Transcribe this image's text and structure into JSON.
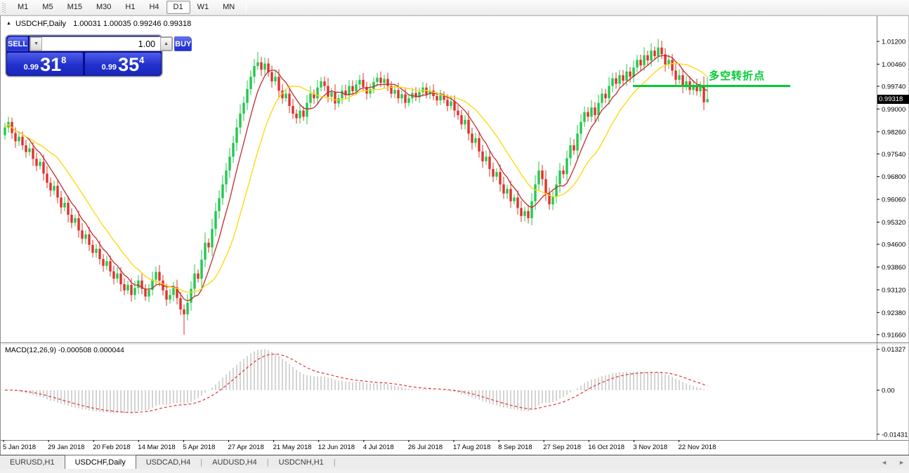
{
  "toolbar": {
    "timeframes": [
      "M1",
      "M5",
      "M15",
      "M30",
      "H1",
      "H4",
      "D1",
      "W1",
      "MN"
    ],
    "active_timeframe": "D1"
  },
  "chart": {
    "title": {
      "arrow": "▲",
      "symbol": "USDCHF,Daily",
      "quotes": "1.00031 1.00035 0.99246 0.99318"
    },
    "trade_panel": {
      "sell_label": "SELL",
      "buy_label": "BUY",
      "volume": "1.00",
      "down_arrow_icon": "▼",
      "up_arrow_icon": "▲",
      "sell_price": {
        "prefix": "0.99",
        "big": "31",
        "sup": "8"
      },
      "buy_price": {
        "prefix": "0.99",
        "big": "35",
        "sup": "4"
      }
    },
    "annotation": {
      "text": "多空转折点",
      "color": "#00cc33"
    },
    "current_price": "0.99318",
    "y_ticks": [
      "1.01200",
      "1.00460",
      "0.99740",
      "0.99000",
      "0.98260",
      "0.97540",
      "0.96800",
      "0.96060",
      "0.95320",
      "0.94600",
      "0.93860",
      "0.93120",
      "0.92380",
      "0.91660"
    ],
    "x_ticks": [
      "5 Jan 2018",
      "29 Jan 2018",
      "20 Feb 2018",
      "14 Mar 2018",
      "5 Apr 2018",
      "27 Apr 2018",
      "21 May 2018",
      "12 Jun 2018",
      "4 Jul 2018",
      "26 Jul 2018",
      "17 Aug 2018",
      "8 Sep 2018",
      "27 Sep 2018",
      "16 Oct 2018",
      "3 Nov 2018",
      "22 Nov 2018"
    ]
  },
  "tabs": {
    "items": [
      "EURUSD,H1",
      "USDCHF,Daily",
      "USDCAD,H4",
      "AUDUSD,H4",
      "USDCNH,H1"
    ],
    "active_index": 1,
    "scroll_left_icon": "◄",
    "scroll_right_icon": "►"
  },
  "chart_data": {
    "type": "candlestick",
    "symbol": "USDCHF",
    "timeframe": "Daily",
    "price_axis": {
      "min": 0.9166,
      "max": 1.012,
      "tick_step": 0.0074
    },
    "colors": {
      "up": "#22c94e",
      "down": "#e0312b",
      "ma_fast": "#bf2b2b",
      "ma_slow": "#ffd700",
      "histogram": "#b8b8b8",
      "signal": "#e23434",
      "trendline": "#00cc33",
      "axis": "#808080"
    },
    "candles": {
      "first_open": 0.9815,
      "closes": [
        0.984,
        0.9858,
        0.9822,
        0.9795,
        0.981,
        0.9782,
        0.976,
        0.9772,
        0.9738,
        0.9715,
        0.9728,
        0.969,
        0.966,
        0.9635,
        0.965,
        0.9612,
        0.958,
        0.9595,
        0.9556,
        0.953,
        0.9545,
        0.9505,
        0.9478,
        0.9492,
        0.9458,
        0.9432,
        0.9445,
        0.9412,
        0.939,
        0.9405,
        0.9372,
        0.9348,
        0.9365,
        0.933,
        0.931,
        0.9328,
        0.9295,
        0.9318,
        0.9342,
        0.9315,
        0.929,
        0.9312,
        0.9345,
        0.937,
        0.9342,
        0.931,
        0.928,
        0.9295,
        0.932,
        0.9285,
        0.9248,
        0.9232,
        0.927,
        0.9315,
        0.9365,
        0.9348,
        0.941,
        0.9465,
        0.945,
        0.951,
        0.9568,
        0.961,
        0.9655,
        0.97,
        0.9745,
        0.979,
        0.984,
        0.9885,
        0.992,
        0.9965,
        1.0005,
        1.004,
        1.0052,
        1.0028,
        1.0048,
        1.002,
        0.999,
        1.0005,
        0.996,
        0.9935,
        0.995,
        0.991,
        0.9885,
        0.987,
        0.9895,
        0.9875,
        0.992,
        0.995,
        0.9935,
        0.997,
        0.999,
        0.9975,
        0.994,
        0.9955,
        0.9918,
        0.9935,
        0.996,
        0.9945,
        0.9975,
        0.9958,
        0.998,
        0.9995,
        0.9972,
        0.995,
        0.9965,
        0.9988,
        1.0002,
        0.9985,
        0.9998,
        0.9975,
        0.995,
        0.9962,
        0.9935,
        0.9948,
        0.992,
        0.9935,
        0.9952,
        0.9938,
        0.9955,
        0.997,
        0.9948,
        0.996,
        0.9942,
        0.9928,
        0.9945,
        0.993,
        0.991,
        0.9925,
        0.9895,
        0.988,
        0.985,
        0.9865,
        0.982,
        0.979,
        0.9805,
        0.9762,
        0.973,
        0.9745,
        0.9705,
        0.968,
        0.9695,
        0.9655,
        0.9625,
        0.964,
        0.96,
        0.9612,
        0.9578,
        0.9552,
        0.9568,
        0.9545,
        0.96,
        0.9655,
        0.97,
        0.9672,
        0.9625,
        0.959,
        0.9615,
        0.9655,
        0.97,
        0.9688,
        0.974,
        0.9782,
        0.9765,
        0.982,
        0.9858,
        0.989,
        0.9875,
        0.9905,
        0.988,
        0.992,
        0.995,
        0.9935,
        0.9975,
        1.0,
        0.9982,
        1.001,
        0.9992,
        1.0022,
        1.0005,
        1.0035,
        1.006,
        1.0042,
        1.0075,
        1.0058,
        1.009,
        1.0072,
        1.01,
        1.0078,
        1.0045,
        1.006,
        1.0025,
        0.9995,
        1.001,
        0.9975,
        0.999,
        0.9962,
        0.9978,
        0.9958,
        0.9975,
        0.9922,
        0.9932
      ],
      "wick_overrides": {
        "2": {
          "high": 0.9872
        },
        "51": {
          "low": 0.9166
        },
        "72": {
          "high": 1.0085
        },
        "147": {
          "low": 0.9532
        },
        "186": {
          "high": 1.0128
        },
        "200": {
          "high": 1.0004,
          "low": 0.9925
        }
      }
    },
    "overlays": [
      {
        "name": "ma-fast",
        "type": "sma",
        "period": 7,
        "color": "#bf2b2b"
      },
      {
        "name": "ma-slow",
        "type": "sma",
        "period": 16,
        "color": "#ffd700"
      }
    ],
    "trendline": {
      "type": "horizontal-segment",
      "price": 0.9975,
      "label": "多空转折点",
      "color": "#00cc33"
    },
    "indicator": {
      "name": "MACD",
      "params": "12,26,9",
      "display": "MACD(12,26,9) -0.000508 0.000044",
      "axis_max": "0.01327",
      "axis_zero": "0.00",
      "axis_min": "-0.01431"
    }
  }
}
